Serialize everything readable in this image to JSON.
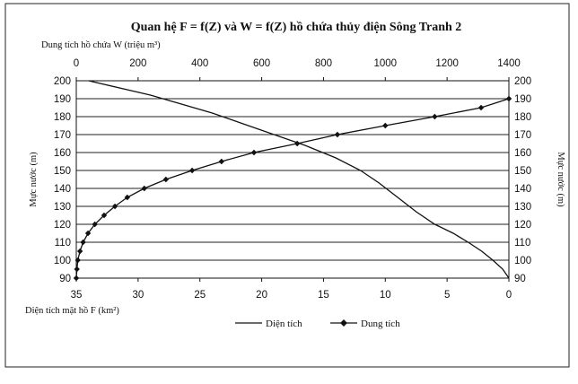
{
  "chart_data": {
    "type": "line",
    "title": "Quan hệ F = f(Z) và W = f(Z) hồ chứa thủy điện Sông Tranh 2",
    "x_top_label": "Dung tích hồ chứa W (triệu m³)",
    "x_bottom_label": "Diện tích mặt hồ F (km²)",
    "y_left_label": "Mực nước (m)",
    "y_right_label": "Mực nước (m)",
    "y_ticks": [
      "90",
      "100",
      "110",
      "120",
      "130",
      "140",
      "150",
      "160",
      "170",
      "180",
      "190",
      "200"
    ],
    "x_top_ticks": [
      "0",
      "200",
      "400",
      "600",
      "800",
      "1000",
      "1200",
      "1400"
    ],
    "x_bottom_ticks": [
      "35",
      "30",
      "25",
      "20",
      "15",
      "10",
      "5",
      "0"
    ],
    "ylim": [
      90,
      200
    ],
    "x_top_lim": [
      0,
      1400
    ],
    "x_bottom_lim": [
      35,
      0
    ],
    "grid": true,
    "legend_position": "bottom",
    "series": [
      {
        "name": "Diện tích",
        "axis": "bottom",
        "marker": "none",
        "color": "#111111",
        "x": [
          0,
          0.5,
          1.3,
          2.2,
          3.3,
          4.5,
          6,
          7.5,
          9,
          10.5,
          12,
          14,
          16.5,
          19,
          21.5,
          24,
          26.5,
          29,
          31.5,
          34
        ],
        "y": [
          90,
          95,
          100,
          105,
          110,
          115,
          120,
          127,
          135,
          143,
          150,
          157,
          164,
          170,
          176,
          182,
          187,
          192,
          196,
          200
        ]
      },
      {
        "name": "Dung tích",
        "axis": "top",
        "marker": "diamond",
        "color": "#111111",
        "x": [
          0,
          2,
          5,
          12,
          22,
          38,
          60,
          90,
          125,
          165,
          220,
          290,
          375,
          470,
          575,
          715,
          845,
          1000,
          1160,
          1310,
          1400
        ],
        "y": [
          90,
          95,
          100,
          105,
          110,
          115,
          120,
          125,
          130,
          135,
          140,
          145,
          150,
          155,
          160,
          165,
          170,
          175,
          180,
          185,
          190
        ]
      }
    ]
  }
}
